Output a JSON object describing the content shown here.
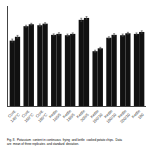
{
  "chart_data": {
    "type": "bar",
    "categories": [
      "Cont.\n140°C",
      "Cont.\n160°C",
      "Cont.\n180°C",
      "Kettle\n160/5",
      "Kettle\n180/5",
      "Kettle\n200/5",
      "Kettle\n160/10",
      "Kettle\n180/10",
      "Kettle\n200/10",
      "Kettle\n180"
    ],
    "series": [
      {
        "color": "#111111",
        "values": [
          340,
          415,
          420,
          370,
          368,
          448,
          285,
          355,
          368,
          375
        ],
        "errors": [
          8,
          5,
          6,
          5,
          6,
          8,
          5,
          5,
          6,
          5
        ]
      },
      {
        "color": "#111111",
        "values": [
          360,
          425,
          428,
          375,
          375,
          458,
          300,
          370,
          378,
          385
        ],
        "errors": [
          7,
          5,
          5,
          6,
          5,
          7,
          5,
          6,
          5,
          6
        ]
      }
    ],
    "ylim": [
      0,
      520
    ],
    "yticks": [],
    "grid": false,
    "tick_labels": "x",
    "annotations": [
      "Fig. 8.  Potassium  content in continuous  frying  and kettle  cooked potato chips.  Data\nare  mean of three replicates  and standard  deviation."
    ]
  }
}
